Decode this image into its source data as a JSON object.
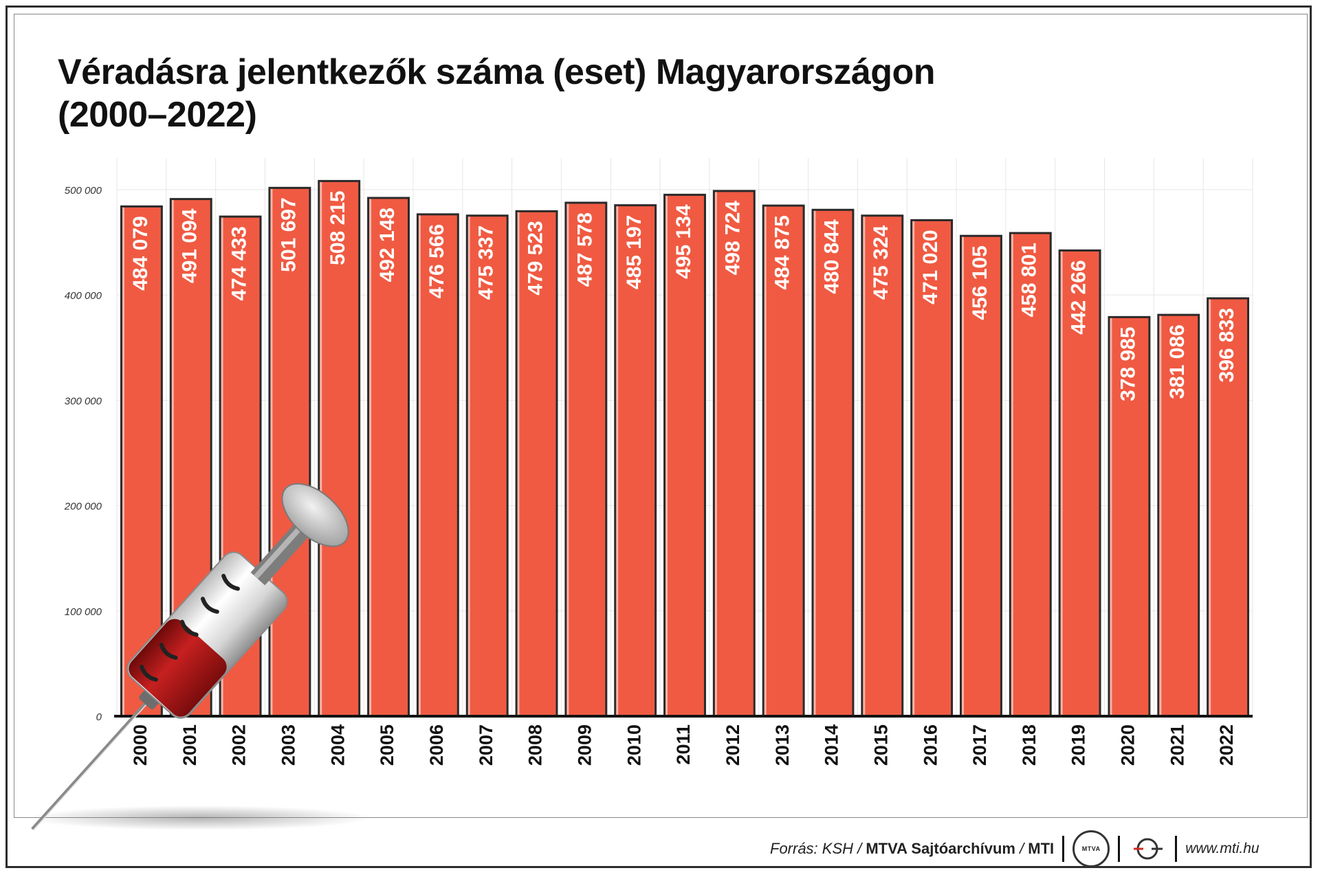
{
  "title_line1": "Véradásra jelentkezők száma (eset) Magyarországon",
  "title_line2": "(2000–2022)",
  "footer": {
    "source_prefix": "Forrás: KSH / ",
    "source_bold": "MTVA Sajtóarchívum",
    "source_sep": " / ",
    "source_mti": "MTI",
    "logo_text": "MTVA",
    "url": "www.mti.hu"
  },
  "colors": {
    "bar": "#f05a42",
    "bar_edge": "#2a2a2a",
    "label": "#ffffff"
  },
  "icons": [
    "syringe-icon",
    "mtva-logo-icon",
    "mti-logo-icon"
  ],
  "chart_data": {
    "type": "bar",
    "title": "Véradásra jelentkezők száma (eset) Magyarországon (2000–2022)",
    "categories": [
      "2000",
      "2001",
      "2002",
      "2003",
      "2004",
      "2005",
      "2006",
      "2007",
      "2008",
      "2009",
      "2010",
      "2011",
      "2012",
      "2013",
      "2014",
      "2015",
      "2016",
      "2017",
      "2018",
      "2019",
      "2020",
      "2021",
      "2022"
    ],
    "values": [
      484079,
      491094,
      474433,
      501697,
      508215,
      492148,
      476566,
      475337,
      479523,
      487578,
      485197,
      495134,
      498724,
      484875,
      480844,
      475324,
      471020,
      456105,
      458801,
      442266,
      378985,
      381086,
      396833
    ],
    "value_labels": [
      "484 079",
      "491 094",
      "474 433",
      "501 697",
      "508 215",
      "492 148",
      "476 566",
      "475 337",
      "479 523",
      "487 578",
      "485 197",
      "495 134",
      "498 724",
      "484 875",
      "480 844",
      "475 324",
      "471 020",
      "456 105",
      "458 801",
      "442 266",
      "378 985",
      "381 086",
      "396 833"
    ],
    "y_ticks": [
      0,
      100000,
      200000,
      300000,
      400000,
      500000
    ],
    "y_tick_labels": [
      "0",
      "100 000",
      "200 000",
      "300 000",
      "400 000",
      "500 000"
    ],
    "ylim": [
      0,
      530000
    ],
    "grid": true,
    "legend": "none",
    "xlabel": "",
    "ylabel": ""
  }
}
